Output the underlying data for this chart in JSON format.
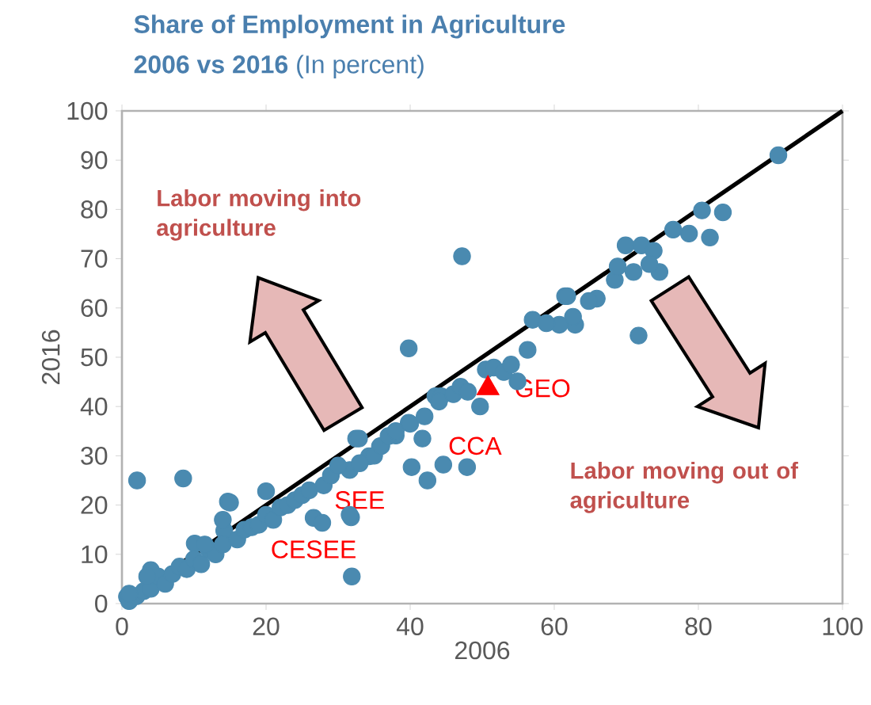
{
  "chart_data": {
    "type": "scatter",
    "title": "Share of Employment in Agriculture",
    "subtitle": "**2006 vs 2016** (In percent)",
    "xlabel": "2006",
    "ylabel": "2016",
    "xlim": [
      0,
      100
    ],
    "ylim": [
      0,
      100
    ],
    "xticks": [
      0,
      20,
      40,
      60,
      80,
      100
    ],
    "yticks": [
      0,
      10,
      20,
      30,
      40,
      50,
      60,
      70,
      80,
      90,
      100
    ],
    "grid": false,
    "legend": false,
    "annotations": [
      "Labor moving into agriculture",
      "Labor moving out of agriculture",
      "CCA",
      "SEE",
      "CESEE"
    ],
    "series": [
      {
        "marker": "circle",
        "color": "#4a8ab0",
        "x": [
          2.1,
          8.5,
          14.7,
          20,
          31.9,
          26.6,
          14.2,
          10.1,
          4,
          0.7,
          31.8,
          32.5,
          47.2,
          39.8,
          56.3,
          57,
          61.5,
          62.9,
          50.5,
          51.6,
          54.9,
          43.5,
          44.3,
          49.7,
          47.9,
          42.4,
          44.6,
          40.2,
          39.8,
          41.7,
          38,
          35.8,
          32.9,
          34.3,
          31.6,
          31.6,
          27.8,
          91.1,
          83.4,
          80.5,
          81.6,
          78.7,
          76.5,
          69.9,
          72.1,
          73.8,
          74.6,
          73.2,
          71,
          68.4,
          68.8,
          65.9,
          64.8,
          61.8,
          62.6,
          60.7,
          58.9,
          71.7,
          1,
          2,
          3,
          4,
          5,
          6,
          7,
          8,
          9,
          10,
          11,
          12,
          13,
          14,
          16,
          17,
          18,
          19,
          20,
          21,
          22,
          23,
          24,
          25,
          26,
          28,
          29,
          30,
          33,
          35,
          36,
          37,
          38,
          40,
          42,
          44,
          46,
          47,
          48,
          53,
          54,
          3.5,
          1,
          11.5,
          14,
          15
        ],
        "values": [
          25,
          25.4,
          20.7,
          22.8,
          5.5,
          17.4,
          14.8,
          12.2,
          6.8,
          1.4,
          17.5,
          33.5,
          70.5,
          51.8,
          51.5,
          57.6,
          62.4,
          56.6,
          47.5,
          47.9,
          45.1,
          42.1,
          42.1,
          40,
          27.7,
          25,
          28.2,
          27.7,
          36.7,
          33.5,
          34.1,
          31.9,
          33.5,
          29.9,
          27.1,
          18,
          16.4,
          91,
          79.4,
          79.8,
          74.3,
          75.1,
          75.9,
          72.7,
          72.7,
          71.6,
          67.3,
          68.9,
          67.3,
          65.7,
          68.4,
          61.9,
          61.4,
          62.4,
          58.2,
          56.6,
          56.9,
          54.4,
          0.5,
          1.5,
          2.5,
          3,
          5.5,
          4,
          6,
          7.5,
          7,
          9,
          8,
          11,
          10,
          12,
          13,
          15,
          15.5,
          16,
          18,
          17,
          19.5,
          20,
          21,
          22,
          23,
          24,
          26,
          28,
          28.5,
          30,
          32,
          34,
          35,
          36.5,
          38,
          41,
          42.5,
          44,
          43,
          47,
          48.5,
          5.5,
          2,
          12,
          17,
          20.5
        ]
      },
      {
        "type": "line",
        "marker": "none",
        "color": "#000000",
        "x": [
          0,
          100
        ],
        "values": [
          0,
          100
        ]
      },
      {
        "marker": "triangle",
        "name": "GEO",
        "color": "#ff0000",
        "x": [
          50.8
        ],
        "values": [
          43.7
        ]
      }
    ]
  }
}
